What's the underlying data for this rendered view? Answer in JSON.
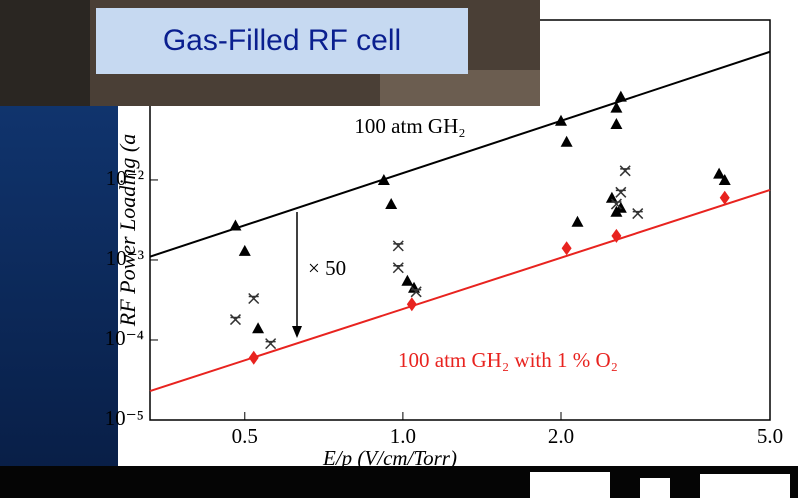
{
  "label": "Gas-Filled RF cell",
  "chart_data": {
    "type": "scatter",
    "y_label": "RF Power Loading (a",
    "x_label": "E/p (V/cm/Torr)",
    "annotations": [
      "100 atm GH₂",
      "× 50",
      "100 atm GH₂ with 1 % O₂"
    ],
    "xscale": "log",
    "yscale": "log",
    "xlim": [
      0.33,
      5
    ],
    "ylim": [
      1e-05,
      0.5
    ],
    "xticks": [
      {
        "value": 0.5,
        "label": "0.5"
      },
      {
        "value": 1,
        "label": "1.0"
      },
      {
        "value": 2,
        "label": "2.0"
      },
      {
        "value": 5,
        "label": "5.0"
      }
    ],
    "yticks": [
      {
        "value": 1e-05,
        "label": "10⁻⁵"
      },
      {
        "value": 0.0001,
        "label": "10⁻⁴"
      },
      {
        "value": 0.001,
        "label": "10⁻³"
      },
      {
        "value": 0.01,
        "label": "10⁻²"
      }
    ],
    "series": [
      {
        "marker": "line",
        "color": "#000000",
        "x": [
          0.33,
          5
        ],
        "values": [
          0.0011,
          0.4
        ]
      },
      {
        "marker": "line",
        "color": "#e8231f",
        "x": [
          0.33,
          5
        ],
        "values": [
          2.3e-05,
          0.0075
        ]
      },
      {
        "marker": "triangle",
        "color": "#000000",
        "x": [
          0.48,
          0.5,
          0.53,
          0.92,
          0.95,
          1.02,
          1.05,
          2.0,
          2.05,
          2.15,
          2.55,
          2.6,
          2.55,
          2.5,
          2.55,
          2.6,
          4.0,
          4.1
        ],
        "values": [
          0.0027,
          0.0013,
          0.00014,
          0.01,
          0.005,
          0.00055,
          0.00045,
          0.055,
          0.03,
          0.003,
          0.08,
          0.11,
          0.05,
          0.006,
          0.004,
          0.0045,
          0.012,
          0.01
        ]
      },
      {
        "marker": "cross",
        "color": "#333333",
        "x": [
          0.48,
          0.52,
          0.56,
          0.98,
          0.98,
          1.06,
          2.6,
          2.65,
          2.8,
          2.55
        ],
        "values": [
          0.00018,
          0.00033,
          9e-05,
          0.0015,
          0.0008,
          0.0004,
          0.007,
          0.013,
          0.0038,
          0.005
        ]
      },
      {
        "marker": "diamond",
        "color": "#e8231f",
        "x": [
          0.52,
          1.04,
          2.05,
          2.55,
          4.1
        ],
        "values": [
          6e-05,
          0.00028,
          0.0014,
          0.002,
          0.006
        ]
      }
    ]
  }
}
